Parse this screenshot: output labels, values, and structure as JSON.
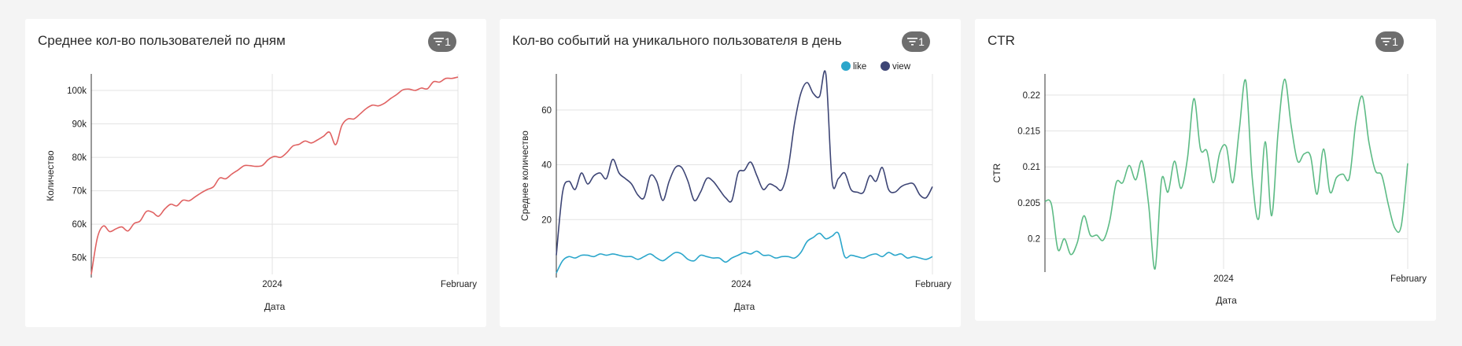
{
  "cards": [
    {
      "title": "Среднее кол-во пользователей по дням",
      "filter_count": "1"
    },
    {
      "title": "Кол-во событий на уникального пользователя в день",
      "filter_count": "1"
    },
    {
      "title": "CTR",
      "filter_count": "1"
    }
  ],
  "colors": {
    "users": "#e06262",
    "like": "#2ba6cb",
    "view": "#3d4575",
    "ctr": "#5dbb85",
    "badge": "#6e6e6e"
  },
  "chart_data": [
    {
      "type": "line",
      "title": "Среднее кол-во пользователей по дням",
      "xlabel": "Дата",
      "ylabel": "Количество",
      "x_ticks": [
        "2024",
        "February"
      ],
      "y_ticks": [
        "50k",
        "60k",
        "70k",
        "80k",
        "90k",
        "100k"
      ],
      "ylim": [
        45000,
        104000
      ],
      "grid": true,
      "series": [
        {
          "values": [
            45000,
            56000,
            59500,
            57800,
            58600,
            59200,
            58000,
            60200,
            61000,
            63800,
            63600,
            62400,
            64500,
            66000,
            65500,
            67200,
            67000,
            68200,
            69400,
            70400,
            71200,
            73800,
            73600,
            75000,
            76200,
            77500,
            77500,
            77300,
            77600,
            79400,
            80300,
            80000,
            81400,
            83400,
            83900,
            84900,
            84300,
            85200,
            86300,
            87500,
            83800,
            89500,
            91500,
            91500,
            93000,
            94600,
            95600,
            95400,
            96200,
            97600,
            98800,
            100200,
            100400,
            100000,
            100700,
            100500,
            102600,
            102500,
            103600,
            103600,
            104000
          ]
        }
      ]
    },
    {
      "type": "line",
      "title": "Кол-во событий на уникального пользователя в день",
      "xlabel": "Дата",
      "ylabel": "Среднее количество",
      "x_ticks": [
        "2024",
        "February"
      ],
      "y_ticks": [
        "20",
        "40",
        "60"
      ],
      "ylim": [
        0,
        72
      ],
      "grid": true,
      "legend": "top-right",
      "series": [
        {
          "name": "like",
          "values": [
            0.5,
            5,
            6.5,
            6,
            7,
            7,
            6.5,
            7.5,
            7,
            7.5,
            7,
            6.5,
            6.5,
            5.5,
            6.5,
            7.5,
            6,
            5,
            6.5,
            8,
            7.5,
            5.5,
            5,
            7,
            6.5,
            6,
            6,
            4.5,
            6,
            7,
            8,
            7.5,
            8.5,
            7,
            7,
            6,
            6.5,
            6.5,
            6,
            8,
            12,
            13.5,
            15,
            13,
            14,
            15,
            6.5,
            7,
            6.5,
            6,
            7,
            7.5,
            6.5,
            8,
            7,
            7.5,
            6,
            6.5,
            6,
            5.5,
            6.5
          ]
        },
        {
          "name": "view",
          "values": [
            7,
            30,
            34,
            31,
            37,
            33,
            36,
            37,
            35,
            42,
            37,
            35,
            33,
            29,
            28,
            36,
            34,
            27,
            34,
            39,
            39,
            34,
            27,
            30,
            35,
            34,
            31,
            28,
            27,
            37,
            38,
            41,
            36,
            31,
            33,
            32,
            31,
            39,
            55,
            66,
            70,
            66,
            65,
            73,
            34,
            35,
            37,
            31,
            30,
            30,
            36,
            34,
            39,
            31,
            30,
            32,
            33,
            33,
            29,
            28,
            32
          ]
        }
      ]
    },
    {
      "type": "line",
      "title": "CTR",
      "xlabel": "Дата",
      "ylabel": "CTR",
      "x_ticks": [
        "2024",
        "February"
      ],
      "y_ticks": [
        "0.2",
        "0.205",
        "0.21",
        "0.215",
        "0.22"
      ],
      "ylim": [
        0.1958,
        0.2225
      ],
      "grid": true,
      "series": [
        {
          "values": [
            0.2052,
            0.2048,
            0.1985,
            0.2,
            0.1978,
            0.1995,
            0.2032,
            0.2005,
            0.2005,
            0.1998,
            0.2025,
            0.2078,
            0.2078,
            0.2102,
            0.2082,
            0.2108,
            0.2048,
            0.1958,
            0.2082,
            0.2065,
            0.2108,
            0.207,
            0.2112,
            0.2195,
            0.2125,
            0.2122,
            0.2078,
            0.212,
            0.2128,
            0.2078,
            0.2152,
            0.222,
            0.2085,
            0.2028,
            0.2135,
            0.2032,
            0.215,
            0.2222,
            0.2158,
            0.2108,
            0.2118,
            0.2115,
            0.2062,
            0.2125,
            0.2065,
            0.2085,
            0.209,
            0.2085,
            0.2162,
            0.2198,
            0.2135,
            0.2095,
            0.2088,
            0.2048,
            0.2015,
            0.2018,
            0.2105
          ]
        }
      ]
    }
  ]
}
